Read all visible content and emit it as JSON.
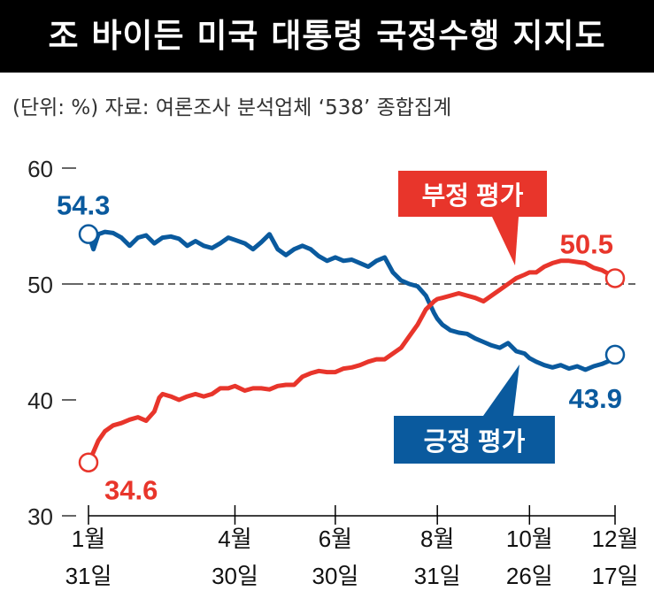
{
  "header": {
    "title": "조 바이든 미국 대통령 국정수행 지지도",
    "source": "(단위: %) 자료: 여론조사 분석업체 ‘538’ 종합집계"
  },
  "colors": {
    "approve": "#0a5a9e",
    "disapprove": "#e8352b",
    "title_bg": "#000000"
  },
  "chart_data": {
    "type": "line",
    "title": "조 바이든 미국 대통령 국정수행 지지도",
    "unit": "%",
    "ylim": [
      30,
      60
    ],
    "yticks": [
      30,
      40,
      50,
      60
    ],
    "reference_line": 50,
    "x_ticks": [
      {
        "day": 0,
        "line1": "1월",
        "line2": "31일"
      },
      {
        "day": 89,
        "line1": "4월",
        "line2": "30일"
      },
      {
        "day": 150,
        "line1": "6월",
        "line2": "30일"
      },
      {
        "day": 212,
        "line1": "8월",
        "line2": "31일"
      },
      {
        "day": 268,
        "line1": "10월",
        "line2": "26일"
      },
      {
        "day": 320,
        "line1": "12월",
        "line2": "17일"
      }
    ],
    "series": [
      {
        "name": "긍정 평가",
        "color": "#0a5a9e",
        "start_label": "54.3",
        "end_label": "43.9",
        "points": [
          [
            0,
            54.3
          ],
          [
            3,
            53.0
          ],
          [
            6,
            54.3
          ],
          [
            10,
            54.5
          ],
          [
            15,
            54.4
          ],
          [
            20,
            54.0
          ],
          [
            25,
            53.3
          ],
          [
            30,
            54.0
          ],
          [
            35,
            54.2
          ],
          [
            40,
            53.5
          ],
          [
            45,
            54.0
          ],
          [
            50,
            54.1
          ],
          [
            55,
            53.9
          ],
          [
            60,
            53.3
          ],
          [
            65,
            53.7
          ],
          [
            70,
            53.3
          ],
          [
            75,
            53.1
          ],
          [
            80,
            53.5
          ],
          [
            85,
            54.0
          ],
          [
            89,
            53.8
          ],
          [
            95,
            53.5
          ],
          [
            100,
            53.0
          ],
          [
            105,
            53.6
          ],
          [
            110,
            54.3
          ],
          [
            115,
            53.0
          ],
          [
            120,
            52.5
          ],
          [
            125,
            53.0
          ],
          [
            130,
            53.3
          ],
          [
            135,
            53.0
          ],
          [
            140,
            52.4
          ],
          [
            145,
            52.0
          ],
          [
            150,
            52.3
          ],
          [
            155,
            52.0
          ],
          [
            160,
            52.1
          ],
          [
            165,
            51.8
          ],
          [
            170,
            51.5
          ],
          [
            175,
            52.0
          ],
          [
            180,
            52.3
          ],
          [
            185,
            51.0
          ],
          [
            190,
            50.3
          ],
          [
            195,
            50.0
          ],
          [
            200,
            49.8
          ],
          [
            205,
            49.0
          ],
          [
            210,
            47.5
          ],
          [
            212,
            47.0
          ],
          [
            215,
            46.5
          ],
          [
            220,
            46.0
          ],
          [
            225,
            45.8
          ],
          [
            230,
            45.7
          ],
          [
            235,
            45.3
          ],
          [
            240,
            45.0
          ],
          [
            245,
            44.7
          ],
          [
            250,
            44.5
          ],
          [
            255,
            44.9
          ],
          [
            260,
            44.2
          ],
          [
            265,
            44.0
          ],
          [
            268,
            43.6
          ],
          [
            272,
            43.3
          ],
          [
            277,
            43.0
          ],
          [
            282,
            42.8
          ],
          [
            287,
            43.0
          ],
          [
            292,
            42.7
          ],
          [
            297,
            42.9
          ],
          [
            302,
            42.6
          ],
          [
            307,
            42.9
          ],
          [
            312,
            43.1
          ],
          [
            317,
            43.4
          ],
          [
            320,
            43.9
          ]
        ]
      },
      {
        "name": "부정 평가",
        "color": "#e8352b",
        "start_label": "34.6",
        "end_label": "50.5",
        "points": [
          [
            0,
            34.6
          ],
          [
            3,
            35.5
          ],
          [
            6,
            36.5
          ],
          [
            10,
            37.3
          ],
          [
            15,
            37.8
          ],
          [
            20,
            38.0
          ],
          [
            25,
            38.3
          ],
          [
            30,
            38.5
          ],
          [
            35,
            38.2
          ],
          [
            40,
            39.0
          ],
          [
            43,
            40.2
          ],
          [
            45,
            40.5
          ],
          [
            50,
            40.3
          ],
          [
            55,
            40.0
          ],
          [
            60,
            40.3
          ],
          [
            65,
            40.5
          ],
          [
            70,
            40.3
          ],
          [
            75,
            40.5
          ],
          [
            80,
            41.0
          ],
          [
            85,
            41.0
          ],
          [
            89,
            41.2
          ],
          [
            95,
            40.8
          ],
          [
            100,
            41.0
          ],
          [
            105,
            41.0
          ],
          [
            110,
            40.9
          ],
          [
            115,
            41.2
          ],
          [
            120,
            41.3
          ],
          [
            125,
            41.3
          ],
          [
            130,
            42.0
          ],
          [
            135,
            42.3
          ],
          [
            140,
            42.5
          ],
          [
            145,
            42.4
          ],
          [
            150,
            42.4
          ],
          [
            155,
            42.7
          ],
          [
            160,
            42.8
          ],
          [
            165,
            43.0
          ],
          [
            170,
            43.3
          ],
          [
            175,
            43.5
          ],
          [
            180,
            43.5
          ],
          [
            185,
            44.0
          ],
          [
            190,
            44.5
          ],
          [
            195,
            45.5
          ],
          [
            200,
            46.5
          ],
          [
            205,
            47.8
          ],
          [
            210,
            48.5
          ],
          [
            212,
            48.7
          ],
          [
            215,
            48.8
          ],
          [
            220,
            49.0
          ],
          [
            225,
            49.2
          ],
          [
            230,
            49.0
          ],
          [
            235,
            48.8
          ],
          [
            240,
            48.5
          ],
          [
            245,
            49.0
          ],
          [
            250,
            49.5
          ],
          [
            255,
            50.0
          ],
          [
            260,
            50.5
          ],
          [
            265,
            50.8
          ],
          [
            268,
            51.0
          ],
          [
            272,
            51.0
          ],
          [
            277,
            51.5
          ],
          [
            282,
            51.8
          ],
          [
            287,
            52.0
          ],
          [
            292,
            52.0
          ],
          [
            297,
            51.9
          ],
          [
            302,
            51.8
          ],
          [
            307,
            51.4
          ],
          [
            312,
            51.2
          ],
          [
            317,
            50.8
          ],
          [
            320,
            50.5
          ]
        ]
      }
    ]
  }
}
